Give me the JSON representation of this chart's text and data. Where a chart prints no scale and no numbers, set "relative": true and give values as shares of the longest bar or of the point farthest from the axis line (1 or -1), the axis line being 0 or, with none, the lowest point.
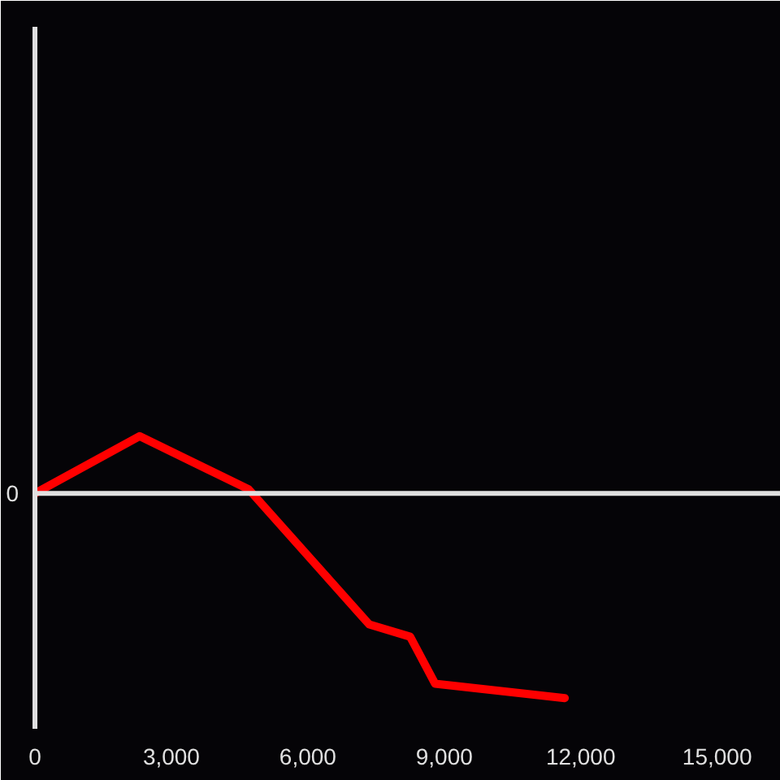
{
  "chart_data": {
    "type": "line",
    "relative": true,
    "x": [
      0,
      2300,
      4700,
      7350,
      8250,
      8800,
      10850,
      11650
    ],
    "series": [
      {
        "color": "#ff0000",
        "values": [
          0,
          0.28,
          0.02,
          -0.64,
          -0.7,
          -0.93,
          -0.98,
          -1
        ]
      }
    ],
    "xlim": [
      0,
      16400
    ],
    "xticks": [
      0,
      {
        "value": 3000,
        "label": "3,000"
      },
      {
        "value": 6000,
        "label": "6,000"
      },
      {
        "value": 9000,
        "label": "9,000"
      },
      {
        "value": 12000,
        "label": "12,000"
      },
      {
        "value": 15000,
        "label": "15,000"
      }
    ],
    "ref_lines": [
      {
        "axis": "y",
        "value": 0,
        "label": "0",
        "color": "#e0e0e0"
      }
    ],
    "grid": false,
    "line_style": "solid"
  }
}
